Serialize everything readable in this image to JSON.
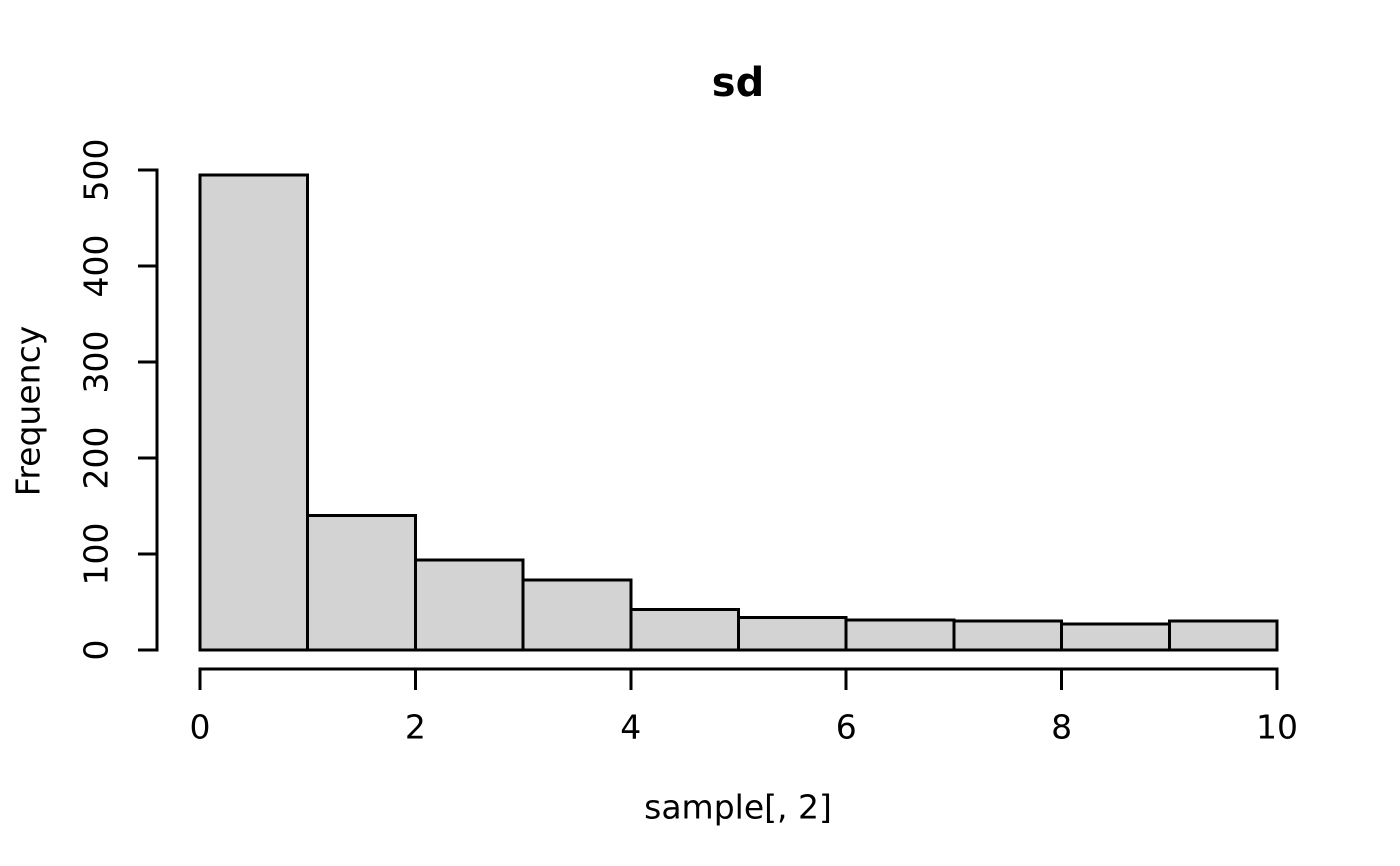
{
  "chart_data": {
    "type": "bar",
    "subtype": "histogram",
    "title": "sd",
    "xlabel": "sample[, 2]",
    "ylabel": "Frequency",
    "categories": [
      "0-1",
      "1-2",
      "2-3",
      "3-4",
      "4-5",
      "5-6",
      "6-7",
      "7-8",
      "8-9",
      "9-10"
    ],
    "breaks": [
      0,
      1,
      2,
      3,
      4,
      5,
      6,
      7,
      8,
      9,
      10
    ],
    "values": [
      495,
      140,
      94,
      73,
      42,
      34,
      31,
      30,
      27,
      30
    ],
    "x_ticks": [
      0,
      2,
      4,
      6,
      8,
      10
    ],
    "y_ticks": [
      0,
      100,
      200,
      300,
      400,
      500
    ],
    "xlim": [
      0,
      10
    ],
    "ylim": [
      0,
      500
    ],
    "grid": false,
    "legend": null,
    "bar_fill": "#d3d3d3",
    "bar_stroke": "#000000",
    "axis_color": "#000000",
    "background": "#ffffff"
  }
}
